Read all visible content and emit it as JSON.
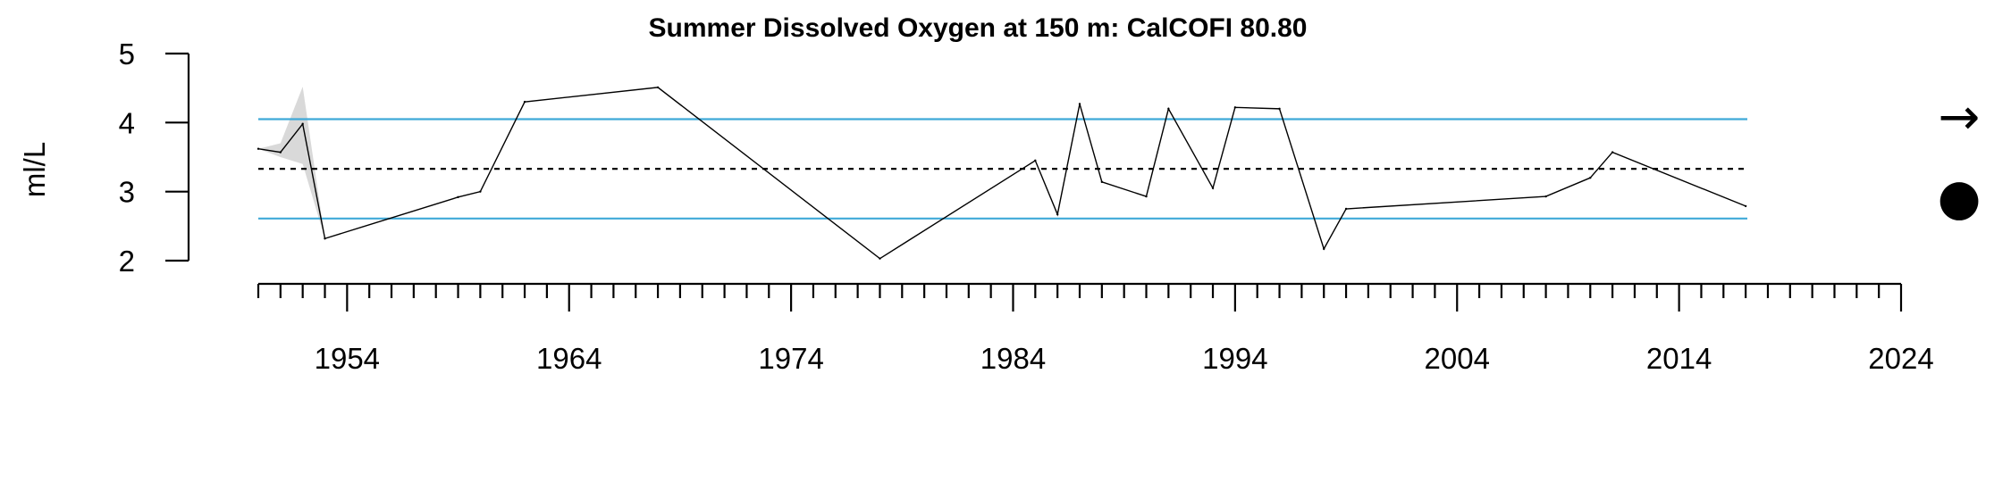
{
  "chart_data": {
    "type": "line",
    "title": "Summer Dissolved Oxygen at 150 m: CalCOFI 80.80",
    "ylabel": "ml/L",
    "xlabel": "",
    "xlim": [
      1950,
      2024
    ],
    "ylim": [
      2,
      5
    ],
    "y_ticks": [
      2,
      3,
      4,
      5
    ],
    "x_tick_labels": [
      1954,
      1964,
      1974,
      1984,
      1994,
      2004,
      2014,
      2024
    ],
    "x_minor_tick_step": 1,
    "grid": false,
    "reference_lines": {
      "mean": 3.33,
      "upper_sd": 4.05,
      "lower_sd": 2.61,
      "mean_color": "#000000",
      "sd_color": "#3fa9d8"
    },
    "series": [
      {
        "x": [
          1950,
          1951,
          1952,
          1953,
          1959,
          1960,
          1962,
          1968,
          1978,
          1985,
          1986,
          1987,
          1988,
          1990,
          1991,
          1993,
          1994,
          1996,
          1998,
          1999,
          2008,
          2010,
          2011,
          2017
        ],
        "y": [
          3.62,
          3.57,
          3.98,
          2.32,
          2.92,
          3.0,
          4.3,
          4.51,
          2.03,
          3.45,
          2.67,
          4.27,
          3.14,
          2.93,
          4.2,
          3.05,
          4.22,
          4.2,
          2.17,
          2.75,
          2.93,
          3.2,
          3.57,
          2.79
        ],
        "color": "#000000"
      }
    ],
    "uncertainty_band": {
      "x": [
        1950,
        1951,
        1952,
        1953
      ],
      "lower": [
        3.62,
        3.5,
        3.4,
        2.32
      ],
      "upper": [
        3.62,
        3.7,
        4.52,
        2.32
      ],
      "color": "#d9d9d9"
    },
    "trend_indicator": "→",
    "status_indicator": "●"
  }
}
